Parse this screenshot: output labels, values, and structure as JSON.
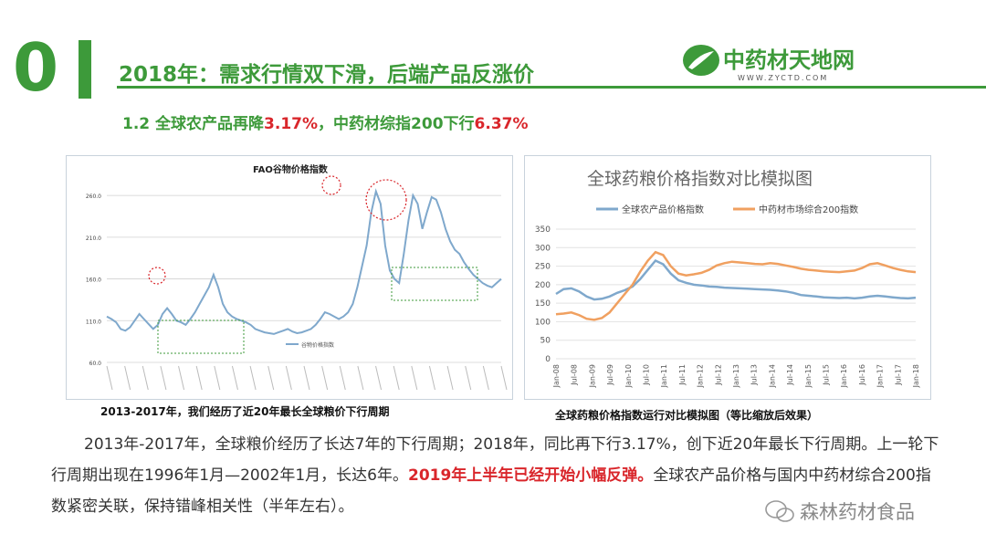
{
  "slide": {
    "section_number": "0",
    "title_prefix": "2018年：需求行情双下滑，后端产品反涨价",
    "subtitle_a": "1.2  全球农产品再降",
    "subtitle_hl1": "3.17%",
    "subtitle_b": "，中药材综指200下行",
    "subtitle_hl2": "6.37%"
  },
  "logo": {
    "name": "中药材天地网",
    "url_text": "WWW.ZYCTD.COM"
  },
  "colors": {
    "green": "#3d9a3a",
    "red": "#d9262b",
    "blue_line": "#7fa8cc",
    "orange_line": "#f0a060"
  },
  "chart_left": {
    "title": "FAO谷物价格指数",
    "legend": "谷物价格指数",
    "caption": "2013-2017年，我们经历了近20年最长全球粮价下行周期",
    "y_ticks": [
      "260.0",
      "210.0",
      "160.0",
      "110.0",
      "60.0"
    ]
  },
  "chart_right": {
    "title": "全球药粮价格指数对比模拟图",
    "legend_a": "全球农产品价格指数",
    "legend_b": "中药材市场综合200指数",
    "caption": "全球药粮价格指数运行对比模拟图（等比缩放后效果）",
    "y_ticks": [
      "350",
      "300",
      "250",
      "200",
      "150",
      "100",
      "50",
      "0"
    ],
    "x_ticks": [
      "Jan-08",
      "Jul-08",
      "Jan-09",
      "Jul-09",
      "Jan-10",
      "Jul-10",
      "Jan-11",
      "Jul-11",
      "Jan-12",
      "Jul-12",
      "Jan-13",
      "Jul-13",
      "Jan-14",
      "Jul-14",
      "Jan-15",
      "Jul-15",
      "Jan-16",
      "Jul-16",
      "Jan-17",
      "Jul-17",
      "Jan-18"
    ]
  },
  "chart_data": [
    {
      "type": "line",
      "title": "FAO谷物价格指数",
      "ylim": [
        60,
        270
      ],
      "series": [
        {
          "name": "谷物价格指数",
          "values": [
            115,
            112,
            108,
            100,
            98,
            102,
            110,
            118,
            112,
            106,
            100,
            105,
            118,
            125,
            118,
            110,
            108,
            105,
            112,
            120,
            130,
            140,
            150,
            165,
            150,
            130,
            120,
            115,
            112,
            110,
            108,
            105,
            100,
            98,
            96,
            95,
            94,
            96,
            98,
            100,
            97,
            95,
            96,
            98,
            100,
            105,
            112,
            120,
            118,
            115,
            112,
            115,
            120,
            130,
            150,
            175,
            200,
            240,
            265,
            250,
            200,
            170,
            160,
            155,
            190,
            230,
            260,
            250,
            220,
            240,
            258,
            255,
            240,
            220,
            205,
            195,
            190,
            180,
            172,
            165,
            160,
            155,
            152,
            150,
            155,
            160
          ]
        }
      ]
    },
    {
      "type": "line",
      "title": "全球药粮价格指数对比模拟图",
      "ylim": [
        0,
        350
      ],
      "series": [
        {
          "name": "全球农产品价格指数",
          "values": [
            175,
            188,
            190,
            182,
            168,
            160,
            162,
            168,
            178,
            185,
            195,
            215,
            240,
            265,
            255,
            230,
            212,
            205,
            200,
            198,
            195,
            194,
            192,
            191,
            190,
            189,
            188,
            187,
            186,
            184,
            182,
            178,
            172,
            170,
            168,
            166,
            165,
            164,
            165,
            163,
            165,
            168,
            170,
            168,
            166,
            164,
            163,
            165
          ]
        },
        {
          "name": "中药材市场综合200指数",
          "values": [
            120,
            122,
            125,
            118,
            108,
            105,
            110,
            125,
            150,
            175,
            200,
            235,
            265,
            288,
            280,
            250,
            230,
            225,
            228,
            232,
            240,
            252,
            258,
            262,
            260,
            258,
            256,
            255,
            258,
            256,
            252,
            248,
            243,
            240,
            238,
            236,
            235,
            234,
            236,
            238,
            245,
            255,
            258,
            252,
            245,
            240,
            236,
            234
          ]
        }
      ]
    }
  ],
  "paragraph": {
    "p1": "2013年-2017年，全球粮价经历了长达7年的下行周期；2018年，同比再下行3.17%，创下近20年最长下行周期。上一轮下行周期出现在1996年1月—2002年1月，长达6年。",
    "p_hl": "2019年上半年已经开始小幅反弹。",
    "p2": "全球农产品价格与国内中药材综合200指数紧密关联，保持错峰相关性（半年左右）。"
  },
  "watermark": {
    "text": "森林药材食品"
  }
}
